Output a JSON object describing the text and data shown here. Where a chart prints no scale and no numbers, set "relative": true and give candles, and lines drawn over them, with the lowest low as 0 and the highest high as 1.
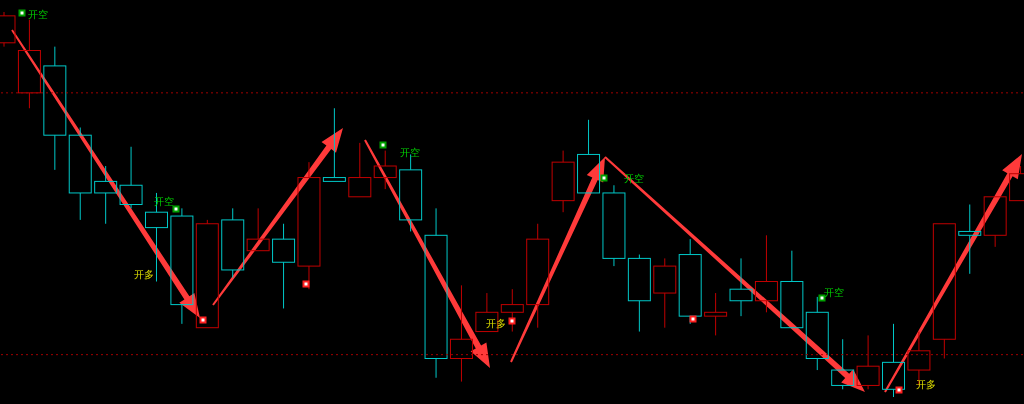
{
  "chart_data": {
    "type": "candlestick",
    "relative": true,
    "categories": [
      null,
      null,
      null,
      null,
      null,
      null,
      null,
      null,
      null,
      null,
      null,
      null,
      null,
      null,
      null,
      null,
      null,
      null,
      null,
      null,
      null,
      null,
      null,
      null,
      null,
      null,
      null,
      null,
      null,
      null,
      null,
      null,
      null,
      null,
      null,
      null,
      null,
      null,
      null,
      null,
      null
    ],
    "ohlc": [
      [
        0.92,
        1.0,
        0.91,
        0.99
      ],
      [
        0.79,
        0.98,
        0.75,
        0.9
      ],
      [
        0.86,
        0.91,
        0.59,
        0.68
      ],
      [
        0.68,
        0.7,
        0.46,
        0.53
      ],
      [
        0.56,
        0.6,
        0.45,
        0.53
      ],
      [
        0.55,
        0.65,
        0.49,
        0.5
      ],
      [
        0.48,
        0.53,
        0.3,
        0.44
      ],
      [
        0.47,
        0.49,
        0.19,
        0.24
      ],
      [
        0.18,
        0.46,
        0.18,
        0.45
      ],
      [
        0.46,
        0.49,
        0.31,
        0.33
      ],
      [
        0.38,
        0.49,
        0.38,
        0.41
      ],
      [
        0.41,
        0.45,
        0.23,
        0.35
      ],
      [
        0.34,
        0.61,
        0.28,
        0.57
      ],
      [
        0.57,
        0.75,
        0.56,
        0.56
      ],
      [
        0.52,
        0.66,
        0.52,
        0.57
      ],
      [
        0.57,
        0.64,
        0.54,
        0.6
      ],
      [
        0.59,
        0.63,
        0.43,
        0.46
      ],
      [
        0.42,
        0.49,
        0.05,
        0.1
      ],
      [
        0.1,
        0.29,
        0.04,
        0.15
      ],
      [
        0.17,
        0.27,
        0.17,
        0.22
      ],
      [
        0.22,
        0.28,
        0.17,
        0.24
      ],
      [
        0.24,
        0.45,
        0.18,
        0.41
      ],
      [
        0.51,
        0.64,
        0.48,
        0.61
      ],
      [
        0.63,
        0.72,
        0.53,
        0.53
      ],
      [
        0.53,
        0.55,
        0.34,
        0.36
      ],
      [
        0.36,
        0.37,
        0.17,
        0.25
      ],
      [
        0.27,
        0.36,
        0.18,
        0.34
      ],
      [
        0.37,
        0.41,
        0.19,
        0.21
      ],
      [
        0.21,
        0.27,
        0.16,
        0.22
      ],
      [
        0.28,
        0.36,
        0.21,
        0.25
      ],
      [
        0.25,
        0.42,
        0.22,
        0.3
      ],
      [
        0.3,
        0.38,
        0.18,
        0.18
      ],
      [
        0.22,
        0.26,
        0.07,
        0.1
      ],
      [
        0.07,
        0.15,
        0.02,
        0.03
      ],
      [
        0.03,
        0.16,
        0.02,
        0.08
      ],
      [
        0.09,
        0.19,
        0.0,
        0.02
      ],
      [
        0.07,
        0.17,
        0.03,
        0.12
      ],
      [
        0.15,
        0.45,
        0.1,
        0.45
      ],
      [
        0.43,
        0.5,
        0.32,
        0.42
      ],
      [
        0.42,
        0.52,
        0.39,
        0.52
      ],
      [
        0.51,
        0.6,
        0.51,
        0.58
      ]
    ],
    "colors": [
      "#c00000",
      "#c00000",
      "#00c8c8",
      "#00c8c8",
      "#00c8c8",
      "#00c8c8",
      "#00c8c8",
      "#00c8c8",
      "#c00000",
      "#00c8c8",
      "#c00000",
      "#00c8c8",
      "#c00000",
      "#00c8c8",
      "#c00000",
      "#c00000",
      "#00c8c8",
      "#00c8c8",
      "#c00000",
      "#c00000",
      "#c00000",
      "#c00000",
      "#c00000",
      "#00c8c8",
      "#00c8c8",
      "#00c8c8",
      "#c00000",
      "#00c8c8",
      "#c00000",
      "#00c8c8",
      "#c00000",
      "#00c8c8",
      "#00c8c8",
      "#00c8c8",
      "#c00000",
      "#00c8c8",
      "#c00000",
      "#c00000",
      "#00c8c8",
      "#c00000",
      "#c00000"
    ],
    "ref_lines": [
      {
        "axis": "y",
        "value": 0.79,
        "color": "#a00000",
        "line_style": "dotted"
      },
      {
        "axis": "y",
        "value": 0.11,
        "color": "#a00000",
        "line_style": "dotted"
      }
    ],
    "annotations": [
      "开空",
      "开多",
      "开空",
      "开空",
      "开多",
      "开空",
      "开空",
      "开多"
    ]
  }
}
